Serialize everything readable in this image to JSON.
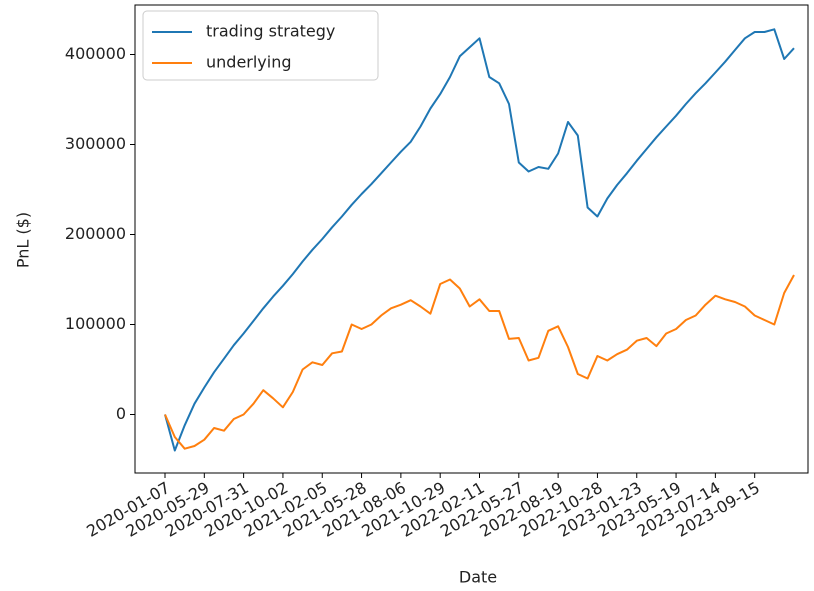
{
  "chart_data": {
    "type": "line",
    "xlabel": "Date",
    "ylabel": "PnL ($)",
    "categories": [
      "2020-01-07",
      null,
      null,
      null,
      "2020-05-29",
      null,
      null,
      null,
      "2020-07-31",
      null,
      null,
      null,
      "2020-10-02",
      null,
      null,
      null,
      "2021-02-05",
      null,
      null,
      null,
      "2021-05-28",
      null,
      null,
      null,
      "2021-08-06",
      null,
      null,
      null,
      "2021-10-29",
      null,
      null,
      null,
      "2022-02-11",
      null,
      null,
      null,
      "2022-05-27",
      null,
      null,
      null,
      "2022-08-19",
      null,
      null,
      null,
      "2022-10-28",
      null,
      null,
      null,
      "2023-01-23",
      null,
      null,
      null,
      "2023-05-19",
      null,
      null,
      null,
      "2023-07-14",
      null,
      null,
      null,
      "2023-09-15",
      null,
      null,
      null,
      null
    ],
    "series": [
      {
        "name": "trading strategy",
        "color": "#1f77b4",
        "values": [
          0,
          -40000,
          -12000,
          12000,
          30000,
          47000,
          62000,
          77000,
          90000,
          104000,
          118000,
          131000,
          143000,
          156000,
          170000,
          183000,
          195000,
          208000,
          220000,
          233000,
          245000,
          256000,
          268000,
          280000,
          292000,
          303000,
          320000,
          340000,
          356000,
          375000,
          398000,
          408000,
          418000,
          375000,
          368000,
          345000,
          280000,
          270000,
          275000,
          273000,
          290000,
          325000,
          310000,
          230000,
          220000,
          240000,
          255000,
          268000,
          282000,
          295000,
          308000,
          320000,
          332000,
          345000,
          357000,
          368000,
          380000,
          392000,
          405000,
          418000,
          425000,
          425000,
          428000,
          395000,
          407000
        ]
      },
      {
        "name": "underlying",
        "color": "#ff7f0e",
        "values": [
          0,
          -25000,
          -38000,
          -35000,
          -28000,
          -15000,
          -18000,
          -5000,
          0,
          12000,
          27000,
          18000,
          8000,
          25000,
          50000,
          58000,
          55000,
          68000,
          70000,
          100000,
          95000,
          100000,
          110000,
          118000,
          122000,
          127000,
          120000,
          112000,
          145000,
          150000,
          140000,
          120000,
          128000,
          115000,
          115000,
          84000,
          85000,
          60000,
          63000,
          93000,
          98000,
          75000,
          45000,
          40000,
          65000,
          60000,
          67000,
          72000,
          82000,
          85000,
          76000,
          90000,
          95000,
          105000,
          110000,
          122000,
          132000,
          128000,
          125000,
          120000,
          110000,
          105000,
          100000,
          135000,
          155000
        ]
      }
    ],
    "ylim": [
      -65000,
      455000
    ],
    "yticks": [
      0,
      100000,
      200000,
      300000,
      400000
    ],
    "legend": "upper left"
  }
}
